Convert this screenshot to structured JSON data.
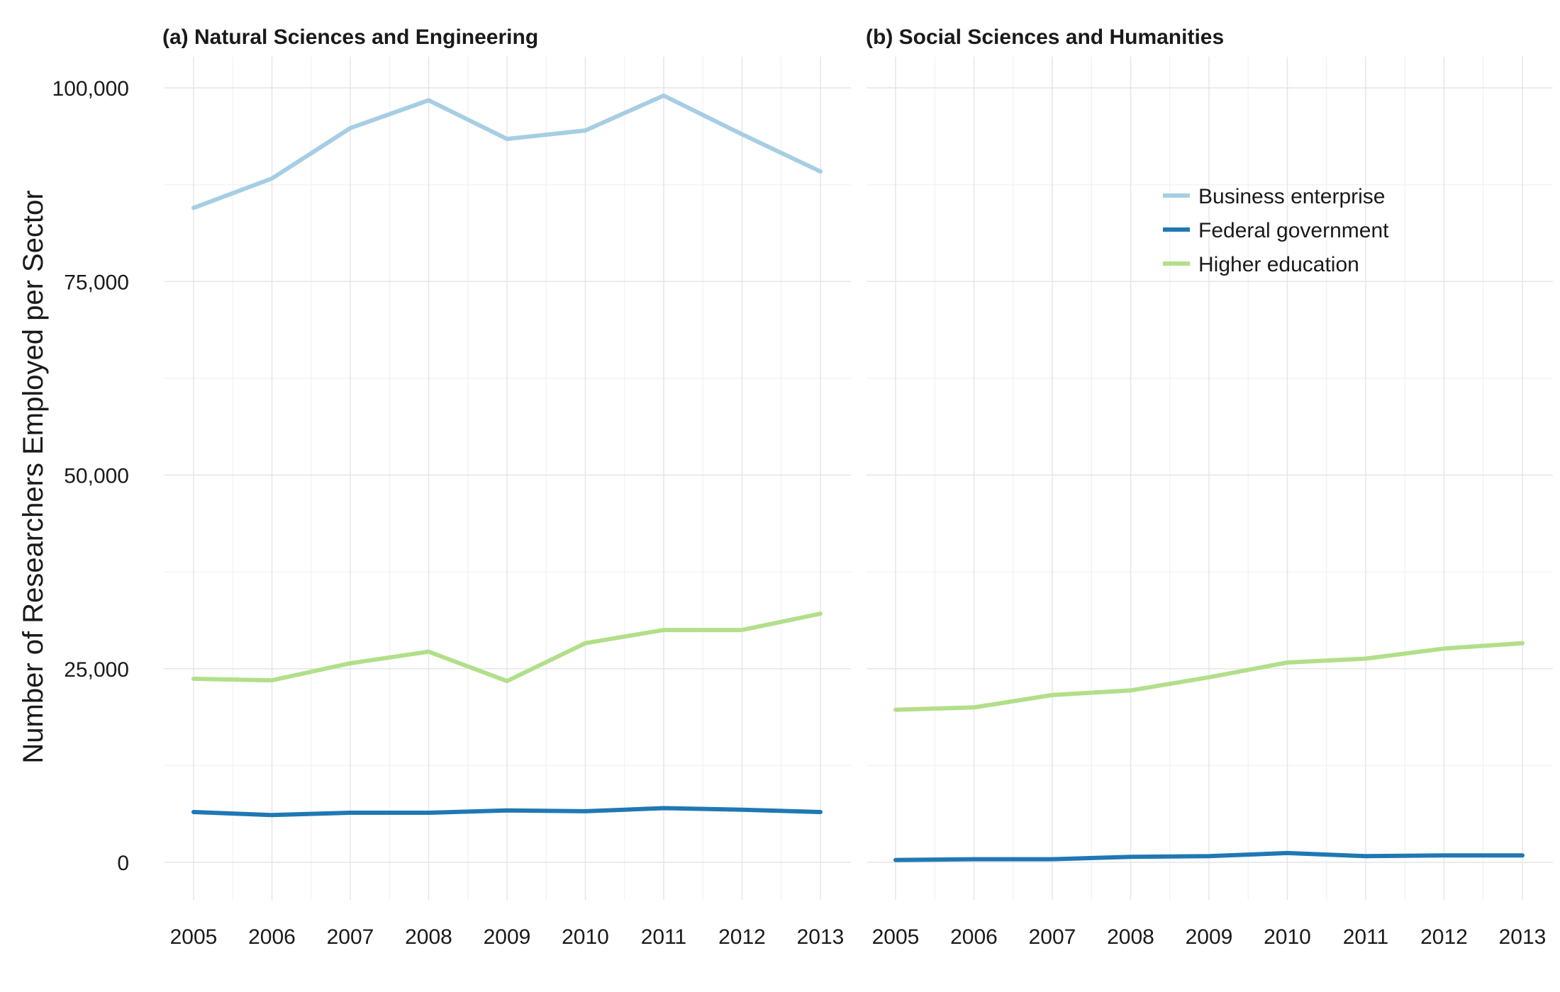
{
  "chart_data": {
    "type": "line",
    "ylabel": "Number of Researchers Employed per Sector",
    "yticks": [
      "0",
      "25,000",
      "50,000",
      "75,000",
      "100,000"
    ],
    "ytick_values": [
      0,
      25000,
      50000,
      75000,
      100000
    ],
    "ylim": [
      -5000,
      104000
    ],
    "grid": true,
    "legend_position": "top-right of panel (b)",
    "x": [
      2005,
      2006,
      2007,
      2008,
      2009,
      2010,
      2011,
      2012,
      2013
    ],
    "colors": {
      "Business enterprise": "#a6cee3",
      "Federal government": "#1f78b4",
      "Higher education": "#b2df8a"
    },
    "legend": [
      "Business enterprise",
      "Federal government",
      "Higher education"
    ],
    "panels": [
      {
        "title": "(a) Natural Sciences and Engineering",
        "series": [
          {
            "name": "Business enterprise",
            "values": [
              84500,
              88300,
              94800,
              98400,
              93400,
              94500,
              99000,
              94000,
              89200
            ]
          },
          {
            "name": "Federal government",
            "values": [
              6500,
              6100,
              6400,
              6400,
              6700,
              6600,
              7000,
              6800,
              6500
            ]
          },
          {
            "name": "Higher education",
            "values": [
              23700,
              23500,
              25700,
              27200,
              23400,
              28300,
              30000,
              30000,
              32100
            ]
          }
        ]
      },
      {
        "title": "(b) Social Sciences and Humanities",
        "series": [
          {
            "name": "Federal government",
            "values": [
              300,
              400,
              400,
              700,
              800,
              1200,
              800,
              900,
              900
            ]
          },
          {
            "name": "Higher education",
            "values": [
              19700,
              20000,
              21600,
              22200,
              23900,
              25800,
              26300,
              27600,
              28300
            ]
          }
        ]
      }
    ]
  }
}
